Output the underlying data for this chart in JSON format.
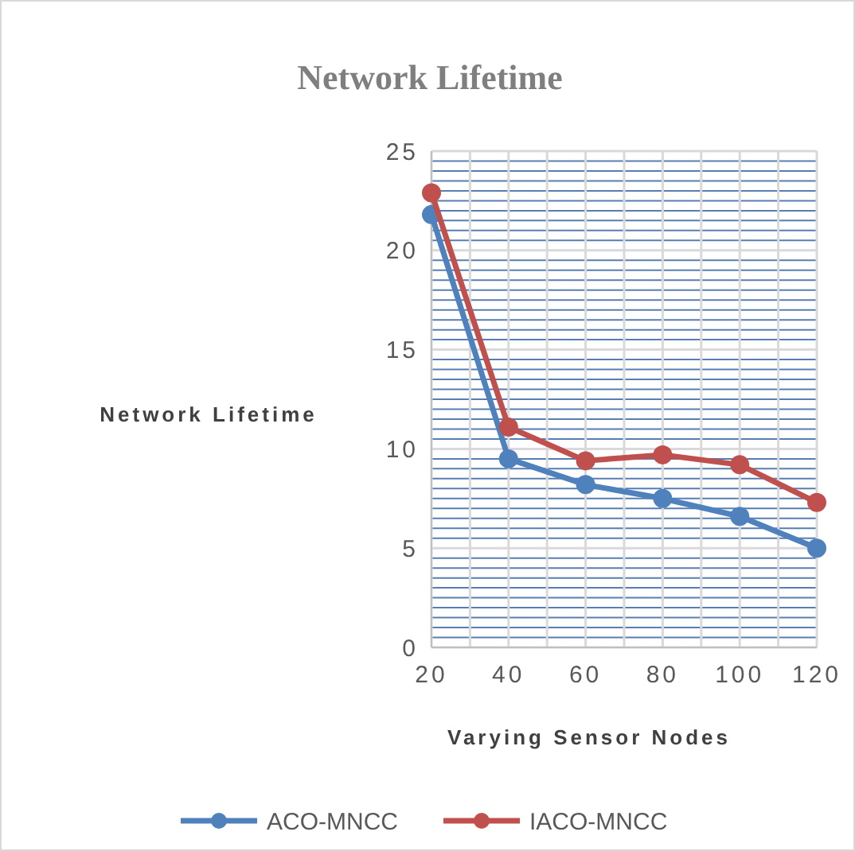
{
  "chart_data": {
    "type": "line",
    "title": "Network Lifetime",
    "xlabel": "Varying Sensor Nodes",
    "ylabel": "Network Lifetime",
    "x": [
      20,
      40,
      60,
      80,
      100,
      120
    ],
    "series": [
      {
        "name": "ACO-MNCC",
        "color": "#4f81bd",
        "values": [
          21.8,
          9.5,
          8.2,
          7.5,
          6.6,
          5.0
        ]
      },
      {
        "name": "IACO-MNCC",
        "color": "#c0504d",
        "values": [
          22.9,
          11.1,
          9.4,
          9.7,
          9.2,
          7.3
        ]
      }
    ],
    "xlim": [
      20,
      120
    ],
    "xticks": [
      20,
      {
        "value": 30,
        "label": null
      },
      40,
      {
        "value": 50,
        "label": null
      },
      60,
      {
        "value": 70,
        "label": null
      },
      80,
      {
        "value": 90,
        "label": null
      },
      100,
      {
        "value": 110,
        "label": null
      },
      120
    ],
    "ylim": [
      0,
      25
    ],
    "yticks": [
      0,
      {
        "value": 0.5,
        "label": null
      },
      {
        "value": 1,
        "label": null
      },
      {
        "value": 1.5,
        "label": null
      },
      {
        "value": 2,
        "label": null
      },
      {
        "value": 2.5,
        "label": null
      },
      {
        "value": 3,
        "label": null
      },
      {
        "value": 3.5,
        "label": null
      },
      {
        "value": 4,
        "label": null
      },
      {
        "value": 4.5,
        "label": null
      },
      5,
      {
        "value": 5.5,
        "label": null
      },
      {
        "value": 6,
        "label": null
      },
      {
        "value": 6.5,
        "label": null
      },
      {
        "value": 7,
        "label": null
      },
      {
        "value": 7.5,
        "label": null
      },
      {
        "value": 8,
        "label": null
      },
      {
        "value": 8.5,
        "label": null
      },
      {
        "value": 9,
        "label": null
      },
      {
        "value": 9.5,
        "label": null
      },
      10,
      {
        "value": 10.5,
        "label": null
      },
      {
        "value": 11,
        "label": null
      },
      {
        "value": 11.5,
        "label": null
      },
      {
        "value": 12,
        "label": null
      },
      {
        "value": 12.5,
        "label": null
      },
      {
        "value": 13,
        "label": null
      },
      {
        "value": 13.5,
        "label": null
      },
      {
        "value": 14,
        "label": null
      },
      {
        "value": 14.5,
        "label": null
      },
      15,
      {
        "value": 15.5,
        "label": null
      },
      {
        "value": 16,
        "label": null
      },
      {
        "value": 16.5,
        "label": null
      },
      {
        "value": 17,
        "label": null
      },
      {
        "value": 17.5,
        "label": null
      },
      {
        "value": 18,
        "label": null
      },
      {
        "value": 18.5,
        "label": null
      },
      {
        "value": 19,
        "label": null
      },
      {
        "value": 19.5,
        "label": null
      },
      20,
      {
        "value": 20.5,
        "label": null
      },
      {
        "value": 21,
        "label": null
      },
      {
        "value": 21.5,
        "label": null
      },
      {
        "value": 22,
        "label": null
      },
      {
        "value": 22.5,
        "label": null
      },
      {
        "value": 23,
        "label": null
      },
      {
        "value": 23.5,
        "label": null
      },
      {
        "value": 24,
        "label": null
      },
      {
        "value": 24.5,
        "label": null
      },
      25
    ],
    "grid": true,
    "legend": "bottom",
    "marker": "circle",
    "line_style": "solid"
  }
}
